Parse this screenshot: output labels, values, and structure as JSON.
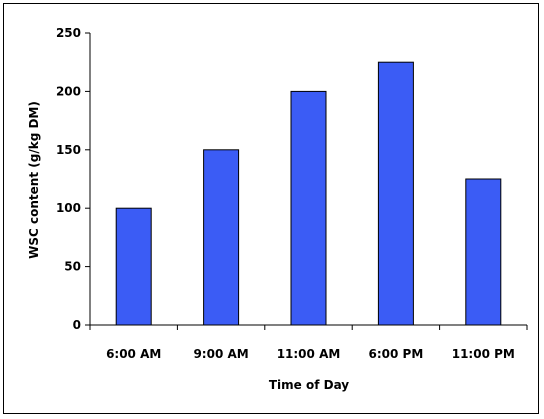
{
  "chart_data": {
    "type": "bar",
    "title": "",
    "xlabel": "Time of Day",
    "ylabel": "WSC content (g/kg DM)",
    "categories": [
      "6:00 AM",
      "9:00 AM",
      "11:00 AM",
      "6:00 PM",
      "11:00 PM"
    ],
    "values": [
      100,
      150,
      200,
      225,
      125
    ],
    "ylim": [
      0,
      250
    ],
    "yticks": [
      0,
      50,
      100,
      150,
      200,
      250
    ],
    "bar_color": "#3b5cf5",
    "grid": false,
    "legend": "none"
  }
}
